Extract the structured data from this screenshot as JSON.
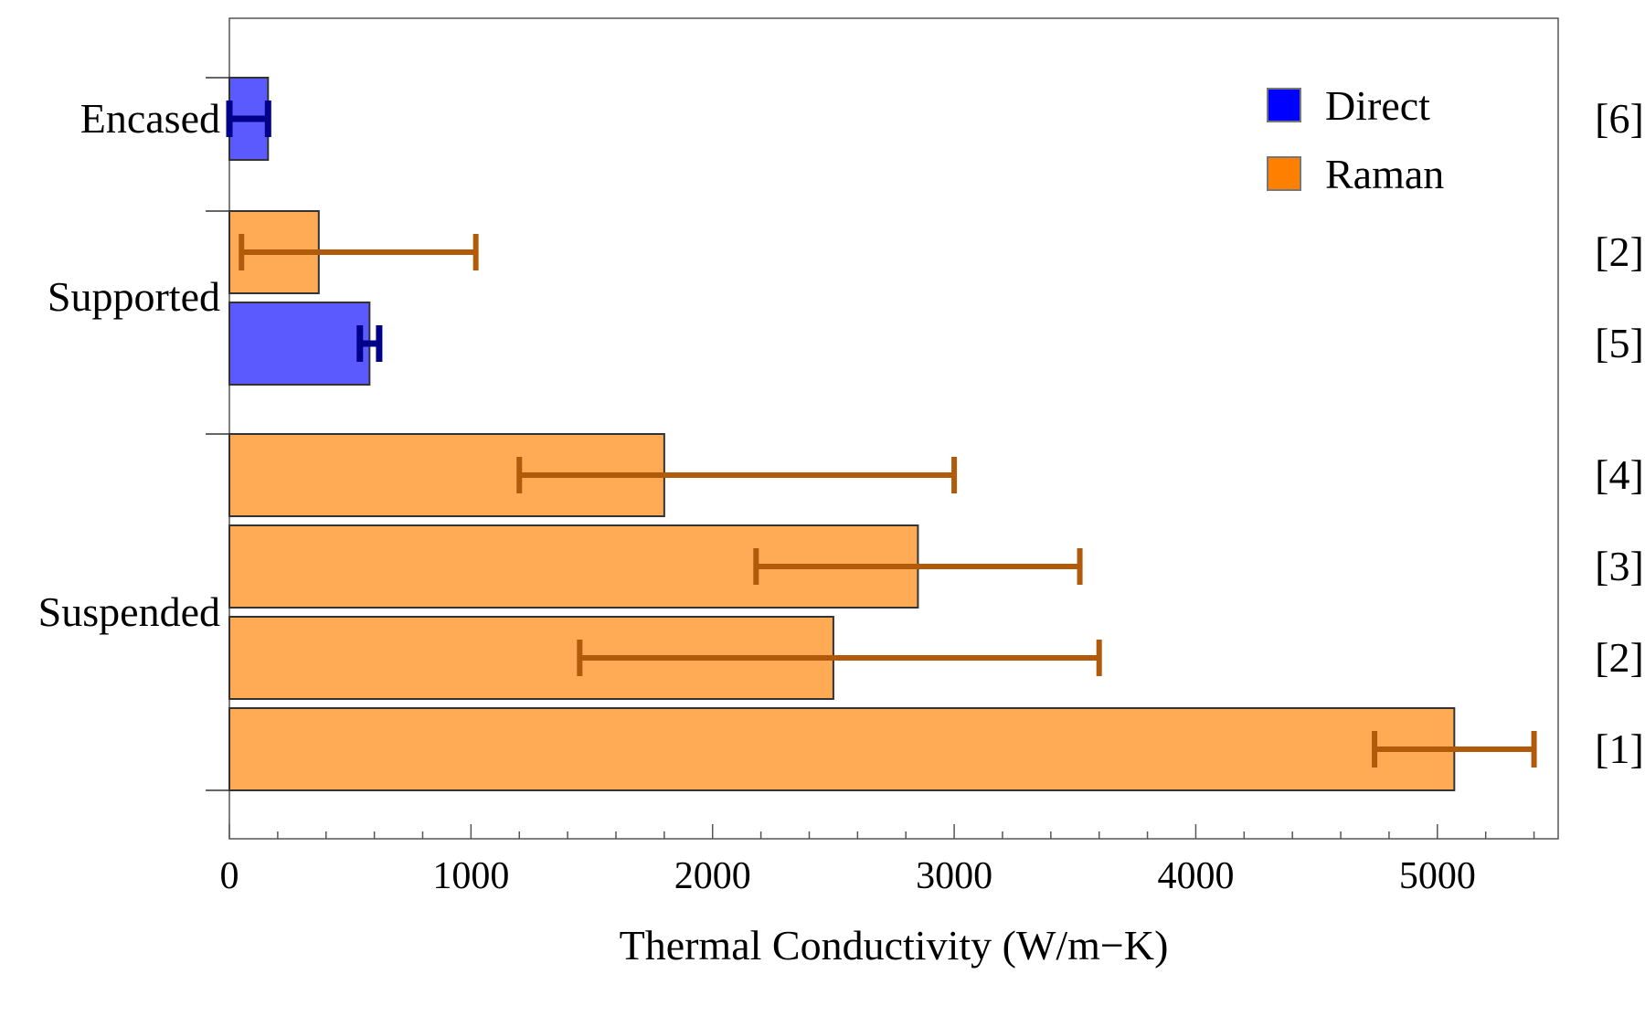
{
  "chart_data": {
    "type": "bar",
    "orientation": "horizontal",
    "xlabel": "Thermal Conductivity (W/m−K)",
    "xlim": [
      0,
      5500
    ],
    "x_ticks": [
      "0",
      "1000",
      "2000",
      "3000",
      "4000",
      "5000"
    ],
    "x_tick_values": [
      0,
      1000,
      2000,
      3000,
      4000,
      5000
    ],
    "legend": {
      "placement": "top-right",
      "entries": [
        {
          "key": "direct",
          "label": "Direct"
        },
        {
          "key": "raman",
          "label": "Raman"
        }
      ]
    },
    "colors": {
      "direct_fill": "#5a5aff",
      "direct_swatch": "#0000ff",
      "direct_error": "#00008b",
      "raman_fill": "#ffaa55",
      "raman_swatch": "#ff8000",
      "raman_error": "#b05a0a"
    },
    "groups": [
      {
        "label": "Encased",
        "span": [
          0,
          1
        ]
      },
      {
        "label": "Supported",
        "span": [
          1,
          3
        ]
      },
      {
        "label": "Suspended",
        "span": [
          3,
          7
        ]
      }
    ],
    "bars": [
      {
        "method": "direct",
        "value": 160,
        "err_low": 0,
        "err_high": 160,
        "ref": "[6]"
      },
      {
        "method": "raman",
        "value": 370,
        "err_low": 50,
        "err_high": 1020,
        "ref": "[2]"
      },
      {
        "method": "direct",
        "value": 580,
        "err_low": 540,
        "err_high": 620,
        "ref": "[5]"
      },
      {
        "method": "raman",
        "value": 1800,
        "err_low": 1200,
        "err_high": 3000,
        "ref": "[4]"
      },
      {
        "method": "raman",
        "value": 2850,
        "err_low": 2180,
        "err_high": 3520,
        "ref": "[3]"
      },
      {
        "method": "raman",
        "value": 2500,
        "err_low": 1450,
        "err_high": 3600,
        "ref": "[2]"
      },
      {
        "method": "raman",
        "value": 5070,
        "err_low": 4740,
        "err_high": 5400,
        "ref": "[1]"
      }
    ]
  }
}
